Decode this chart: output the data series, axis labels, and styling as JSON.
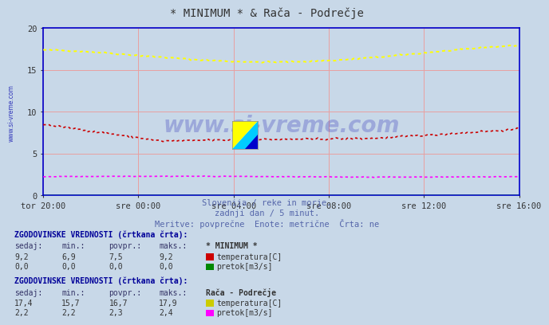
{
  "title": "* MINIMUM * & Rača - Podrečje",
  "bg_color": "#c8d8e8",
  "plot_bg_color": "#c8d8e8",
  "grid_color": "#e8a0a0",
  "axis_color": "#0000cc",
  "watermark": "www.si-vreme.com",
  "subtitle_lines": [
    "Slovenija / reke in morje.",
    "zadnji dan / 5 minut.",
    "Meritve: povprečne  Enote: metrične  Črta: ne"
  ],
  "ylim": [
    0,
    20
  ],
  "yticks": [
    0,
    5,
    10,
    15,
    20
  ],
  "xtick_labels": [
    "tor 20:00",
    "sre 00:00",
    "sre 04:00",
    "sre 08:00",
    "sre 12:00",
    "sre 16:00"
  ],
  "xtick_positions": [
    0,
    4,
    8,
    12,
    16,
    20
  ],
  "table1_title": "ZGODOVINSKE VREDNOSTI (črtkana črta):",
  "table1_station": "* MINIMUM *",
  "table1_rows": [
    {
      "sedaj": "9,2",
      "min": "6,9",
      "povpr": "7,5",
      "maks": "9,2",
      "color": "#cc0000",
      "label": "temperatura[C]"
    },
    {
      "sedaj": "0,0",
      "min": "0,0",
      "povpr": "0,0",
      "maks": "0,0",
      "color": "#008800",
      "label": "pretok[m3/s]"
    }
  ],
  "table2_title": "ZGODOVINSKE VREDNOSTI (črtkana črta):",
  "table2_station": "Rača - Podrečje",
  "table2_rows": [
    {
      "sedaj": "17,4",
      "min": "15,7",
      "povpr": "16,7",
      "maks": "17,9",
      "color": "#cccc00",
      "label": "temperatura[C]"
    },
    {
      "sedaj": "2,2",
      "min": "2,2",
      "povpr": "2,3",
      "maks": "2,4",
      "color": "#ff00ff",
      "label": "pretok[m3/s]"
    }
  ]
}
